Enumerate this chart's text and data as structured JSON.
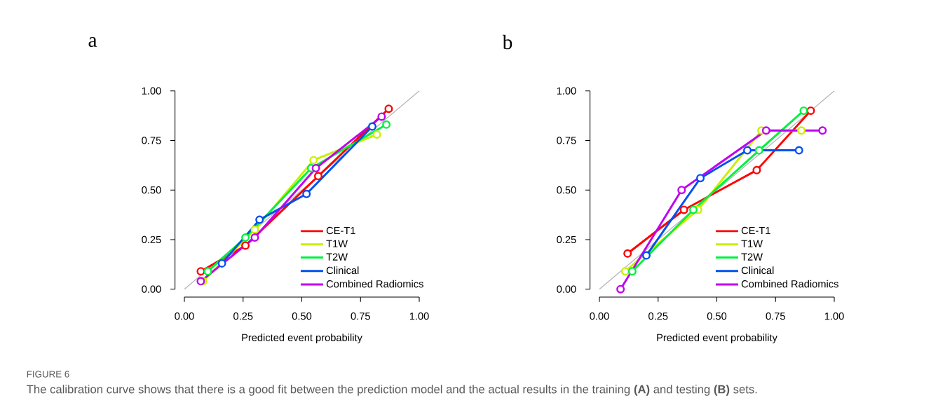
{
  "chart_data": [
    {
      "type": "line",
      "title": "a",
      "xlabel": "Predicted event probability",
      "marker": "circle",
      "line_style": "solid",
      "legend": "bottom right",
      "xlim": [
        0,
        1
      ],
      "ylim": [
        0,
        1
      ],
      "xticks": [
        {
          "value": 0,
          "label": "0.00"
        },
        {
          "value": 0.25,
          "label": "0.25"
        },
        {
          "value": 0.5,
          "label": "0.50"
        },
        {
          "value": 0.75,
          "label": "0.75"
        },
        {
          "value": 1,
          "label": "1.00"
        }
      ],
      "yticks": [
        {
          "value": 0,
          "label": "0.00"
        },
        {
          "value": 0.25,
          "label": "0.25"
        },
        {
          "value": 0.5,
          "label": "0.50"
        },
        {
          "value": 0.75,
          "label": "0.75"
        },
        {
          "value": 1,
          "label": "1.00"
        }
      ],
      "annotations": [
        "FIGURE 6",
        "The calibration curve shows that there is a good fit between the prediction model and the actual results in the training **(A)** and testing **(B)** sets."
      ],
      "series": [
        {
          "color": "#b4b4b4",
          "marker": "none",
          "x": [
            0,
            1
          ],
          "values": [
            0,
            1
          ]
        },
        {
          "name": "CE-T1",
          "color": "#ff0000",
          "x": [
            0.07,
            0.26,
            0.57,
            0.87
          ],
          "values": [
            0.09,
            0.22,
            0.57,
            0.91
          ]
        },
        {
          "name": "T1W",
          "color": "#c8f000",
          "x": [
            0.08,
            0.3,
            0.55,
            0.82
          ],
          "values": [
            0.04,
            0.3,
            0.65,
            0.78
          ]
        },
        {
          "name": "T2W",
          "color": "#00f040",
          "x": [
            0.1,
            0.26,
            0.54,
            0.86
          ],
          "values": [
            0.09,
            0.26,
            0.61,
            0.83
          ]
        },
        {
          "name": "Clinical",
          "color": "#0050f0",
          "x": [
            0.16,
            0.32,
            0.52,
            0.8
          ],
          "values": [
            0.13,
            0.35,
            0.48,
            0.82
          ]
        },
        {
          "name": "Combined Radiomics",
          "color": "#c000f0",
          "x": [
            0.07,
            0.3,
            0.56,
            0.84
          ],
          "values": [
            0.04,
            0.26,
            0.61,
            0.87
          ]
        }
      ]
    },
    {
      "type": "line",
      "title": "b",
      "xlabel": "Predicted event probability",
      "marker": "circle",
      "line_style": "solid",
      "legend": "bottom right",
      "xlim": [
        0,
        1
      ],
      "ylim": [
        0,
        1
      ],
      "xticks": [
        {
          "value": 0,
          "label": "0.00"
        },
        {
          "value": 0.25,
          "label": "0.25"
        },
        {
          "value": 0.5,
          "label": "0.50"
        },
        {
          "value": 0.75,
          "label": "0.75"
        },
        {
          "value": 1,
          "label": "1.00"
        }
      ],
      "yticks": [
        {
          "value": 0,
          "label": "0.00"
        },
        {
          "value": 0.25,
          "label": "0.25"
        },
        {
          "value": 0.5,
          "label": "0.50"
        },
        {
          "value": 0.75,
          "label": "0.75"
        },
        {
          "value": 1,
          "label": "1.00"
        }
      ],
      "series": [
        {
          "color": "#b4b4b4",
          "marker": "none",
          "x": [
            0,
            1
          ],
          "values": [
            0,
            1
          ]
        },
        {
          "name": "CE-T1",
          "color": "#ff0000",
          "x": [
            0.12,
            0.36,
            0.67,
            0.9
          ],
          "values": [
            0.18,
            0.4,
            0.6,
            0.9
          ]
        },
        {
          "name": "T1W",
          "color": "#c8f000",
          "x": [
            0.11,
            0.42,
            0.69,
            0.86
          ],
          "values": [
            0.09,
            0.4,
            0.8,
            0.8
          ]
        },
        {
          "name": "T2W",
          "color": "#00f040",
          "x": [
            0.14,
            0.4,
            0.68,
            0.87
          ],
          "values": [
            0.09,
            0.4,
            0.7,
            0.9
          ]
        },
        {
          "name": "Clinical",
          "color": "#0050f0",
          "x": [
            0.2,
            0.43,
            0.63,
            0.85
          ],
          "values": [
            0.17,
            0.56,
            0.7,
            0.7
          ]
        },
        {
          "name": "Combined Radiomics",
          "color": "#c000f0",
          "x": [
            0.09,
            0.35,
            0.71,
            0.95
          ],
          "values": [
            0.0,
            0.5,
            0.8,
            0.8
          ]
        }
      ]
    }
  ]
}
